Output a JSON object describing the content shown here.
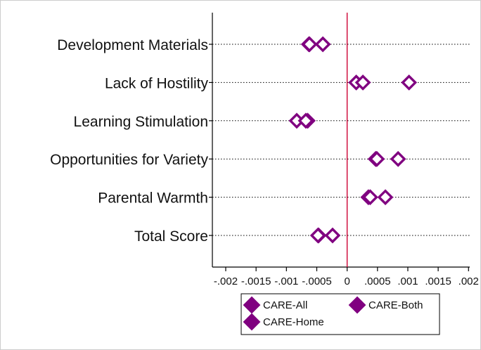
{
  "chart_data": {
    "type": "scatter",
    "categories": [
      "Development Materials",
      "Lack of Hostility",
      "Learning Stimulation",
      "Opportunities for Variety",
      "Parental Warmth",
      "Total Score"
    ],
    "series": [
      {
        "name": "CARE-All",
        "values": [
          -0.00063,
          0.00015,
          -0.00083,
          0.00047,
          0.00035,
          -0.00047
        ],
        "marker": "filled-diamond"
      },
      {
        "name": "CARE-Both",
        "values": [
          -0.0004,
          0.00026,
          -0.00065,
          0.00049,
          0.00038,
          -0.00024
        ],
        "marker": "filled-diamond"
      },
      {
        "name": "CARE-Home",
        "values": [
          -0.00062,
          0.00102,
          -0.00068,
          0.00084,
          0.00063,
          -0.00048
        ],
        "marker": "filled-diamond"
      }
    ],
    "xticks": [
      -0.002,
      -0.0015,
      -0.001,
      -0.0005,
      0,
      0.0005,
      0.001,
      0.0015,
      0.002
    ],
    "xtick_labels": [
      "-.002",
      "-.0015",
      "-.001",
      "-.0005",
      "0",
      ".0005",
      ".001",
      ".0015",
      ".002"
    ],
    "xlim": [
      -0.00222,
      0.00202
    ],
    "reference_line_x": 0,
    "xlabel": "",
    "ylabel": "",
    "title": "",
    "grid": "dotted horizontal lines at each category",
    "legend_position": "bottom",
    "colors": {
      "marker": "#800080",
      "reference_line": "#cc0033",
      "axis": "#000000",
      "grid": "#000000"
    }
  }
}
